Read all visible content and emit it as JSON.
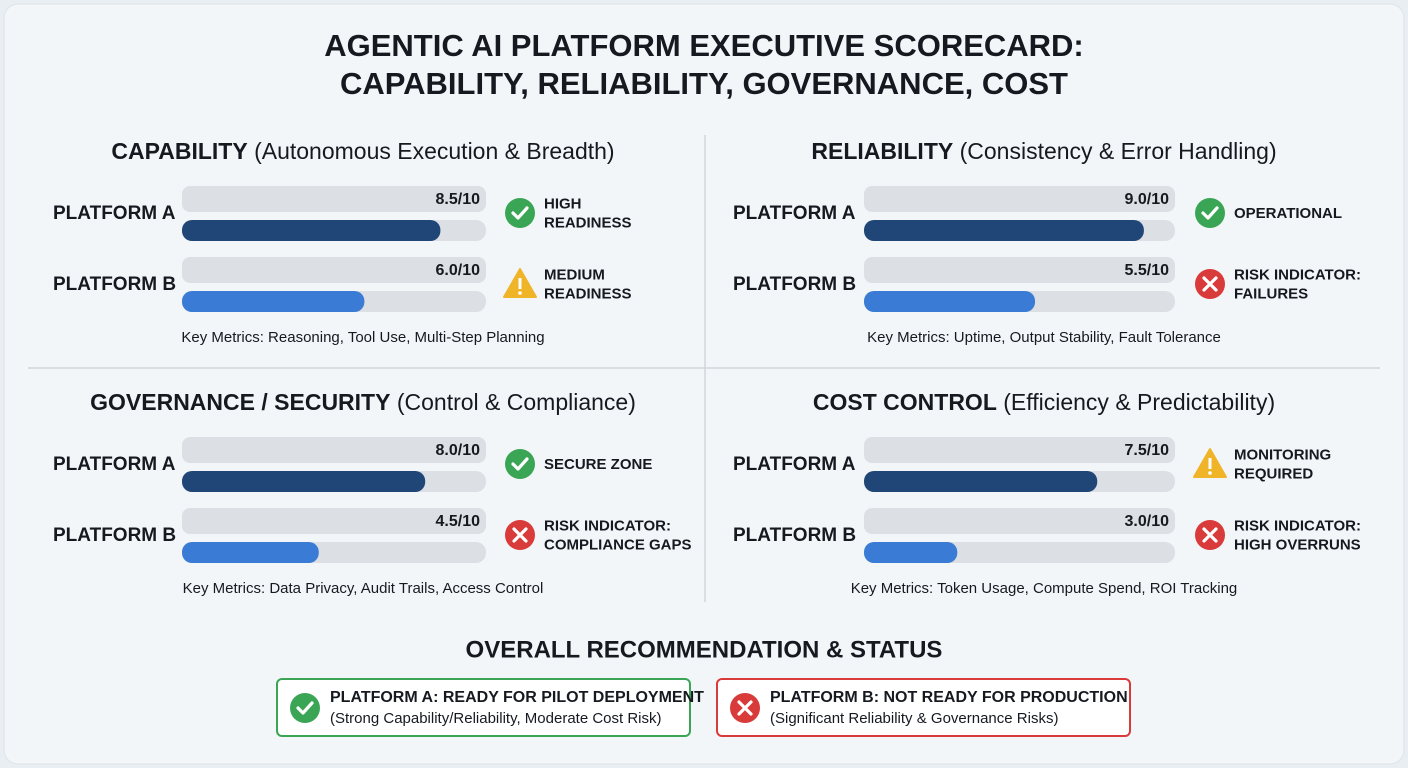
{
  "title": [
    "AGENTIC AI PLATFORM EXECUTIVE SCORECARD:",
    "CAPABILITY, RELIABILITY, GOVERNANCE, COST"
  ],
  "score_max": 10,
  "bar_colors": [
    "#1f4677",
    "#3a7bd5"
  ],
  "panels": [
    {
      "heading": "CAPABILITY",
      "subheading": "(Autonomous Execution & Breadth)",
      "rows": [
        {
          "platform": "PLATFORM A",
          "value": 8.5,
          "value_label": "8.5/10",
          "status": [
            "HIGH",
            "READINESS"
          ],
          "status_icon": "check"
        },
        {
          "platform": "PLATFORM B",
          "value": 6.0,
          "value_label": "6.0/10",
          "status": [
            "MEDIUM",
            "READINESS"
          ],
          "status_icon": "warning"
        }
      ],
      "key_metrics": "Key Metrics: Reasoning, Tool Use, Multi-Step Planning"
    },
    {
      "heading": "RELIABILITY",
      "subheading": "(Consistency & Error Handling)",
      "rows": [
        {
          "platform": "PLATFORM A",
          "value": 9.0,
          "value_label": "9.0/10",
          "status": [
            "OPERATIONAL"
          ],
          "status_icon": "check"
        },
        {
          "platform": "PLATFORM B",
          "value": 5.5,
          "value_label": "5.5/10",
          "status": [
            "RISK INDICATOR:",
            "FAILURES"
          ],
          "status_icon": "x"
        }
      ],
      "key_metrics": "Key Metrics: Uptime, Output Stability, Fault Tolerance"
    },
    {
      "heading": "GOVERNANCE / SECURITY",
      "subheading": "(Control & Compliance)",
      "rows": [
        {
          "platform": "PLATFORM A",
          "value": 8.0,
          "value_label": "8.0/10",
          "status": [
            "SECURE ZONE"
          ],
          "status_icon": "check"
        },
        {
          "platform": "PLATFORM B",
          "value": 4.5,
          "value_label": "4.5/10",
          "status": [
            "RISK INDICATOR:",
            "COMPLIANCE GAPS"
          ],
          "status_icon": "x"
        }
      ],
      "key_metrics": "Key Metrics: Data Privacy, Audit Trails, Access Control"
    },
    {
      "heading": "COST CONTROL",
      "subheading": "(Efficiency & Predictability)",
      "rows": [
        {
          "platform": "PLATFORM A",
          "value": 7.5,
          "value_label": "7.5/10",
          "status": [
            "MONITORING",
            "REQUIRED"
          ],
          "status_icon": "warning"
        },
        {
          "platform": "PLATFORM B",
          "value": 3.0,
          "value_label": "3.0/10",
          "status": [
            "RISK INDICATOR:",
            "HIGH OVERRUNS"
          ],
          "status_icon": "x"
        }
      ],
      "key_metrics": "Key Metrics: Token Usage, Compute Spend, ROI Tracking"
    }
  ],
  "recommendation": {
    "title": "OVERALL RECOMMENDATION & STATUS",
    "items": [
      {
        "headline": "PLATFORM A: READY FOR PILOT DEPLOYMENT",
        "detail": "(Strong Capability/Reliability, Moderate Cost Risk)",
        "status_icon": "check"
      },
      {
        "headline": "PLATFORM B: NOT READY FOR PRODUCTION",
        "detail": "(Significant Reliability & Governance Risks)",
        "status_icon": "x"
      }
    ]
  }
}
